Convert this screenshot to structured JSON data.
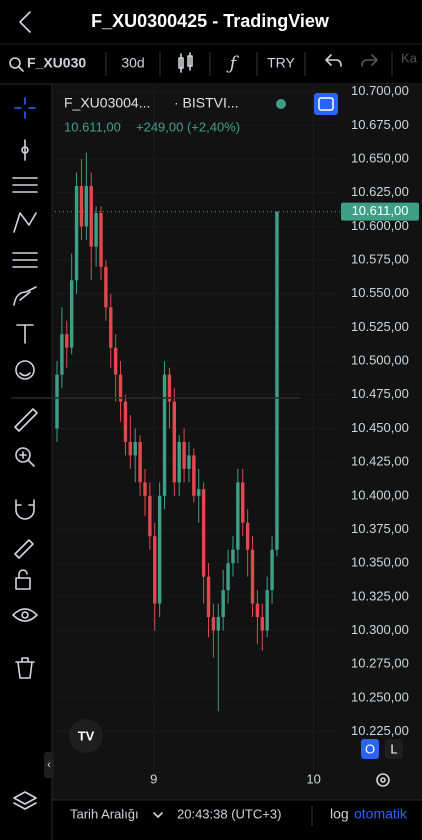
{
  "header": {
    "title": "F_XU0300425 - TradingView"
  },
  "toolbar": {
    "symbol": "F_XU030",
    "interval": "30d",
    "currency": "TRY",
    "more": "Ka"
  },
  "legend": {
    "symbol": "F_XU03004...",
    "exchange": "· BISTVI...",
    "price": "10.611,00",
    "change": "+249,00 (+2,40%)"
  },
  "chart_data": {
    "type": "candlestick",
    "open": [
      10450,
      10490,
      10520,
      10510,
      10560,
      10630,
      10600,
      10630,
      10585,
      10610,
      10570,
      10540,
      10510,
      10490,
      10470,
      10440,
      10430,
      10440,
      10410,
      10400,
      10370,
      10320,
      10400,
      10490,
      10470,
      10410,
      10440,
      10420,
      10430,
      10400,
      10405,
      10340,
      10310,
      10300,
      10310,
      10330,
      10350,
      10360,
      10410,
      10380,
      10360,
      10320,
      10310,
      10300,
      10330,
      10360
    ],
    "high": [
      10500,
      10540,
      10530,
      10580,
      10640,
      10650,
      10655,
      10640,
      10615,
      10615,
      10575,
      10550,
      10520,
      10500,
      10475,
      10460,
      10450,
      10445,
      10420,
      10410,
      10380,
      10410,
      10500,
      10495,
      10480,
      10445,
      10450,
      10440,
      10435,
      10420,
      10410,
      10350,
      10320,
      10320,
      10345,
      10360,
      10370,
      10420,
      10420,
      10390,
      10370,
      10330,
      10320,
      10340,
      10370,
      10611
    ],
    "low": [
      10440,
      10480,
      10495,
      10505,
      10550,
      10590,
      10590,
      10560,
      10570,
      10560,
      10530,
      10495,
      10470,
      10455,
      10430,
      10420,
      10410,
      10400,
      10385,
      10360,
      10300,
      10310,
      10390,
      10450,
      10400,
      10400,
      10410,
      10410,
      10395,
      10380,
      10320,
      10295,
      10280,
      10240,
      10300,
      10320,
      10340,
      10350,
      10370,
      10340,
      10310,
      10290,
      10285,
      10295,
      10320,
      10355
    ],
    "close": [
      10490,
      10520,
      10510,
      10560,
      10630,
      10600,
      10630,
      10585,
      10610,
      10570,
      10540,
      10510,
      10490,
      10470,
      10440,
      10430,
      10440,
      10410,
      10400,
      10370,
      10320,
      10400,
      10490,
      10470,
      10410,
      10440,
      10420,
      10430,
      10400,
      10405,
      10340,
      10310,
      10300,
      10310,
      10330,
      10350,
      10360,
      10410,
      10380,
      10360,
      10320,
      10310,
      10300,
      10330,
      10360,
      10611
    ],
    "up_color": "#3f9f86",
    "down_color": "#e0484f",
    "grid": true,
    "xlim": [
      -0.41,
      57.9
    ],
    "xticks": [
      {
        "value": 19.8,
        "label": "9"
      },
      {
        "value": 52.5,
        "label": "10"
      }
    ],
    "ylim": [
      10215,
      10705
    ],
    "yticks": [
      {
        "value": 10225,
        "label": "10.225,00"
      },
      {
        "value": 10250,
        "label": "10.250,00"
      },
      {
        "value": 10275,
        "label": "10.275,00"
      },
      {
        "value": 10300,
        "label": "10.300,00"
      },
      {
        "value": 10325,
        "label": "10.325,00"
      },
      {
        "value": 10350,
        "label": "10.350,00"
      },
      {
        "value": 10375,
        "label": "10.375,00"
      },
      {
        "value": 10400,
        "label": "10.400,00"
      },
      {
        "value": 10425,
        "label": "10.425,00"
      },
      {
        "value": 10450,
        "label": "10.450,00"
      },
      {
        "value": 10475,
        "label": "10.475,00"
      },
      {
        "value": 10500,
        "label": "10.500,00"
      },
      {
        "value": 10525,
        "label": "10.525,00"
      },
      {
        "value": 10550,
        "label": "10.550,00"
      },
      {
        "value": 10575,
        "label": "10.575,00"
      },
      {
        "value": 10600,
        "label": "10.600,00"
      },
      {
        "value": 10625,
        "label": "10.625,00"
      },
      {
        "value": 10650,
        "label": "10.650,00"
      },
      {
        "value": 10675,
        "label": "10.675,00"
      },
      {
        "value": 10700,
        "label": "10.700,00"
      }
    ],
    "last_price": {
      "value": 10611,
      "label": "10.611,00"
    }
  },
  "scale_buttons": [
    "O",
    "L"
  ],
  "footer": {
    "range": "Tarih Aralığı",
    "time": "20:43:38 (UTC+3)",
    "log": "log",
    "auto": "otomatik"
  }
}
